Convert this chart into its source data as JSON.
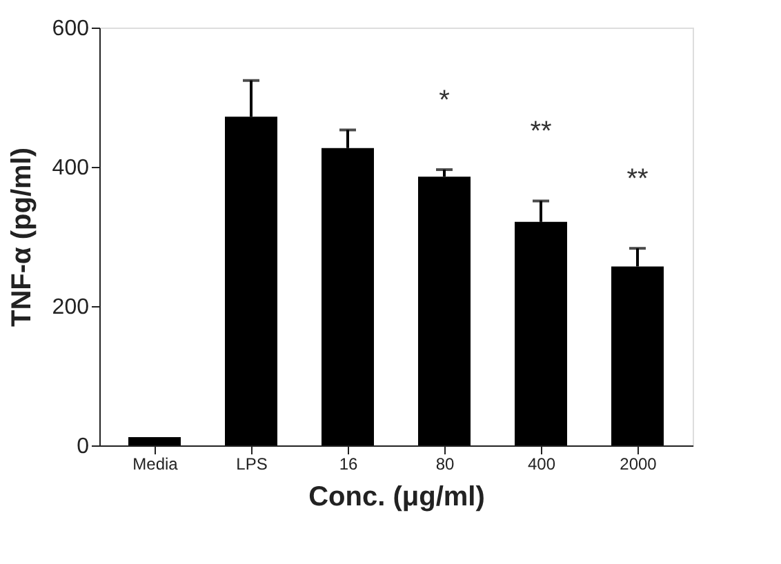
{
  "chart_data": {
    "type": "bar",
    "categories": [
      "Media",
      "LPS",
      "16",
      "80",
      "400",
      "2000"
    ],
    "values": [
      12,
      472,
      427,
      386,
      321,
      257
    ],
    "errors": [
      null,
      [
        472,
        524
      ],
      [
        427,
        453
      ],
      [
        386,
        396
      ],
      [
        321,
        351
      ],
      [
        257,
        283
      ]
    ],
    "color": "#000000",
    "xlabel": "Conc. (μg/ml)",
    "ylabel": "TNF-α (pg/ml)",
    "ylim": [
      0,
      600
    ],
    "yticks": [
      0,
      200,
      400,
      600
    ],
    "grid": false,
    "annotations": [
      {
        "text": "*",
        "x": "80",
        "y": 396
      },
      {
        "text": "**",
        "x": "400",
        "y": 351
      },
      {
        "text": "**",
        "x": "2000",
        "y": 283
      }
    ]
  }
}
